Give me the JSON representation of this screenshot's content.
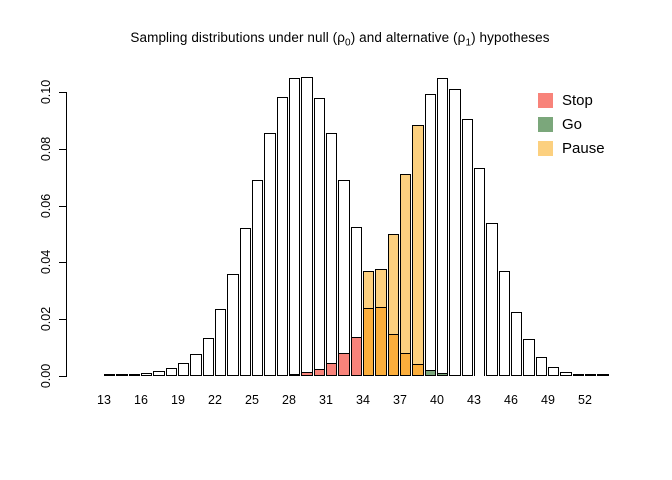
{
  "title": {
    "part1": "Sampling distributions under null (ρ",
    "sub1": "0",
    "part2": ") and alternative (ρ",
    "sub2": "1",
    "part3": ") hypotheses"
  },
  "chart_data": {
    "type": "bar",
    "title": "Sampling distributions under null (ρ0) and alternative (ρ1) hypotheses",
    "xlabel": "",
    "ylabel": "",
    "x_start": 13,
    "x_end": 53,
    "x_ticks": [
      13,
      16,
      19,
      22,
      25,
      28,
      31,
      34,
      37,
      40,
      43,
      46,
      49,
      52
    ],
    "y_ticks": [
      "0.00",
      "0.02",
      "0.04",
      "0.06",
      "0.08",
      "0.10"
    ],
    "y_tick_values": [
      0.0,
      0.02,
      0.04,
      0.06,
      0.08,
      0.1
    ],
    "ylim": [
      0,
      0.109
    ],
    "grid": false,
    "legend_position": "top-right",
    "series": [
      {
        "name": "null (ρ0)",
        "x_start": 13,
        "values": [
          0.0001,
          0.0002,
          0.0005,
          0.0009,
          0.0016,
          0.0028,
          0.0046,
          0.0078,
          0.0135,
          0.0235,
          0.036,
          0.052,
          0.069,
          0.0855,
          0.098,
          0.105,
          0.105,
          0.098,
          0.0855,
          0.069,
          0.0525,
          0.037,
          0.0243,
          0.0148,
          0.008,
          0.0042,
          0.0022,
          0.001,
          0.0004,
          0.0002,
          0.0001,
          0,
          0,
          0,
          0,
          0,
          0,
          0,
          0,
          0,
          0
        ]
      },
      {
        "name": "alternative (ρ1)",
        "x_start": 13,
        "values": [
          0,
          0,
          0,
          0,
          0,
          0,
          0,
          0,
          0,
          0,
          0,
          0,
          0,
          0,
          0.0002,
          0.0006,
          0.0013,
          0.0026,
          0.0046,
          0.008,
          0.0137,
          0.0238,
          0.0377,
          0.05,
          0.071,
          0.0885,
          0.0995,
          0.105,
          0.101,
          0.0905,
          0.0735,
          0.054,
          0.037,
          0.0225,
          0.0132,
          0.0066,
          0.003,
          0.0013,
          0.0005,
          0.0002,
          0.0001
        ]
      }
    ],
    "regions": {
      "stop_max_x": 33,
      "pause_max_x": 38
    },
    "legend": [
      {
        "label": "Stop",
        "color": "#F8837A"
      },
      {
        "label": "Go",
        "color": "#7BA77B"
      },
      {
        "label": "Pause",
        "color": "#FCD07F"
      }
    ],
    "colors": {
      "stop": "#F8837A",
      "go": "#7BA77B",
      "pause": "#FCD07F",
      "overlap_orange": "#FBAE3C",
      "bar_fill": "#FFFFFF",
      "bar_border": "#000000"
    }
  }
}
